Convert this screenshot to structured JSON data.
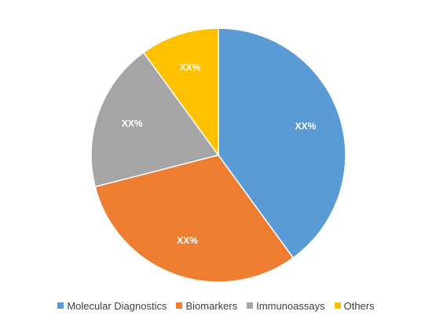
{
  "chart_data": {
    "type": "pie",
    "title": "",
    "categories": [
      "Molecular Diagnostics",
      "Biomarkers",
      "Immunoassays",
      "Others"
    ],
    "values": [
      40,
      31,
      19,
      10
    ],
    "data_labels": [
      "XX%",
      "XX%",
      "XX%",
      "XX%"
    ],
    "colors": [
      "#5B9BD5",
      "#ED7D31",
      "#A5A5A5",
      "#FFC000"
    ],
    "legend_position": "bottom",
    "start_angle": "top",
    "direction": "clockwise"
  }
}
